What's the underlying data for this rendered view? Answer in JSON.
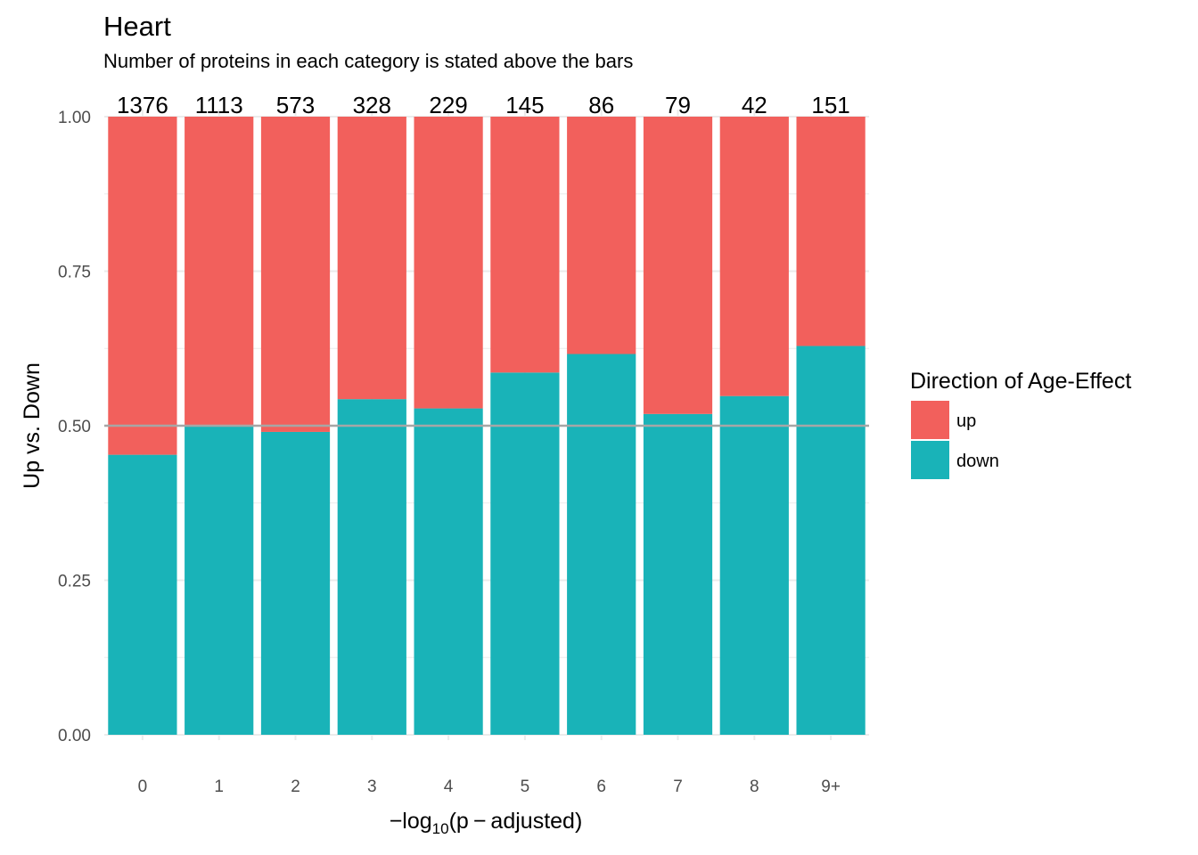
{
  "chart_data": {
    "type": "bar",
    "stacked": true,
    "title": "Heart",
    "subtitle": "Number of proteins in each category is stated above the bars",
    "xlabel_parts": {
      "prefix": "−log",
      "subscript": "10",
      "suffix": "(p − adjusted)"
    },
    "ylabel": "Up vs. Down",
    "ylim": [
      0,
      1
    ],
    "yticks": [
      "0.00",
      "0.25",
      "0.50",
      "0.75",
      "1.00"
    ],
    "ytick_values": [
      0,
      0.25,
      0.5,
      0.75,
      1.0
    ],
    "reference_line": 0.5,
    "categories": [
      "0",
      "1",
      "2",
      "3",
      "4",
      "5",
      "6",
      "7",
      "8",
      "9+"
    ],
    "counts": [
      "1376",
      "1113",
      "573",
      "328",
      "229",
      "145",
      "86",
      "79",
      "42",
      "151"
    ],
    "series": [
      {
        "name": "down",
        "color": "#19B3B8",
        "values": [
          0.453,
          0.5,
          0.49,
          0.543,
          0.528,
          0.586,
          0.616,
          0.519,
          0.548,
          0.629
        ]
      },
      {
        "name": "up",
        "color": "#F2605C",
        "values": [
          0.547,
          0.5,
          0.51,
          0.457,
          0.472,
          0.414,
          0.384,
          0.481,
          0.452,
          0.371
        ]
      }
    ],
    "legend": {
      "title": "Direction of Age-Effect",
      "position": "right",
      "items": [
        {
          "label": "up",
          "color": "#F2605C"
        },
        {
          "label": "down",
          "color": "#19B3B8"
        }
      ]
    }
  }
}
